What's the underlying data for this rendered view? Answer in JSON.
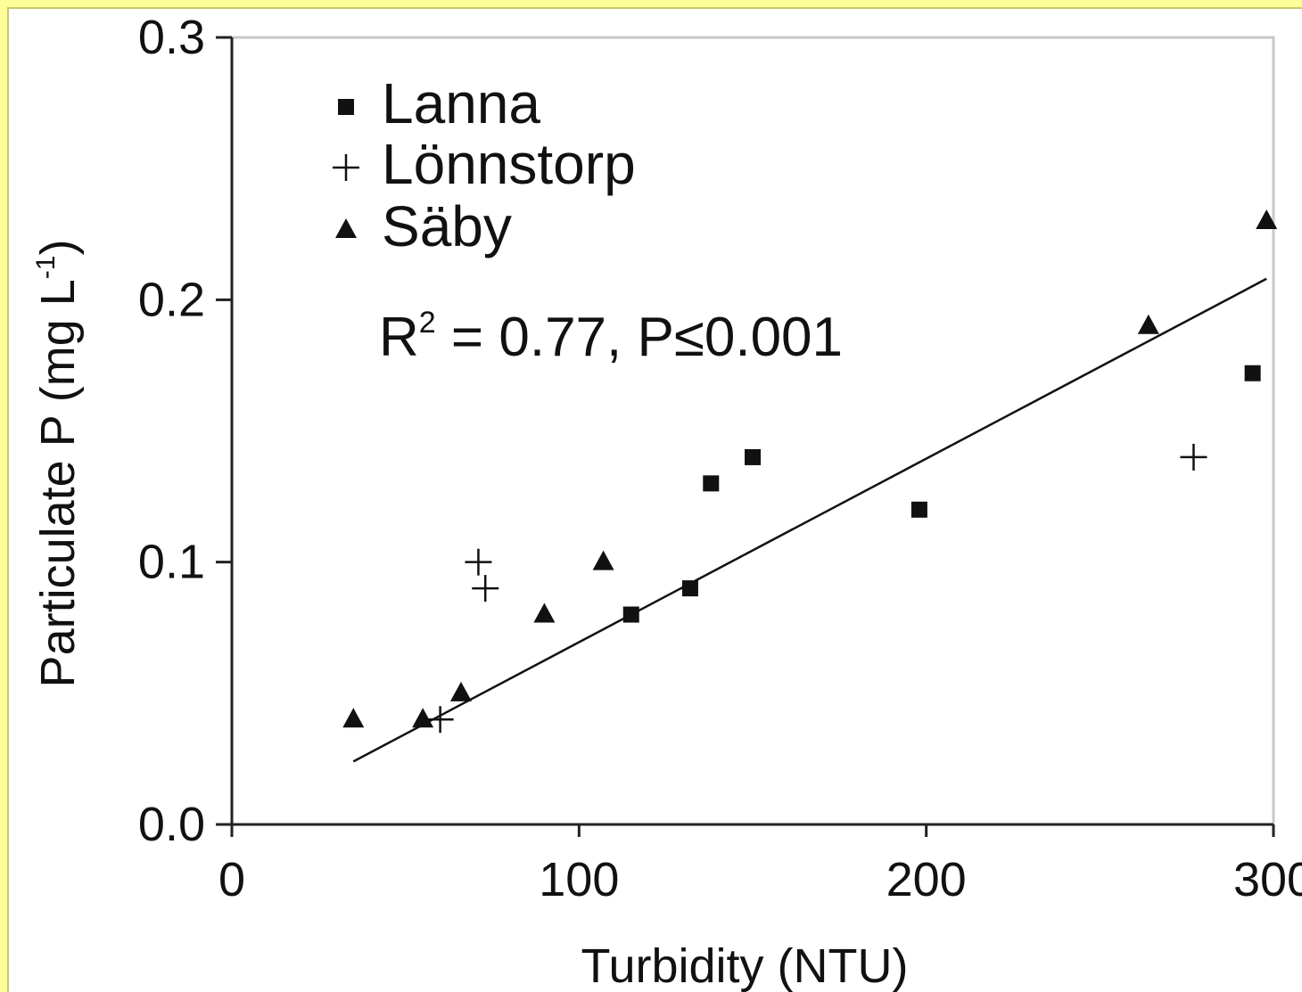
{
  "chart_data": {
    "type": "scatter",
    "title": "",
    "xlabel": "Turbidity (NTU)",
    "ylabel_main": "Particulate P (mg L",
    "ylabel_sup": "-1",
    "ylabel_close": ")",
    "xlim": [
      0,
      300
    ],
    "ylim": [
      0,
      0.3
    ],
    "x_ticks": [
      {
        "value": 0,
        "label": "0"
      },
      {
        "value": 100,
        "label": "100"
      },
      {
        "value": 200,
        "label": "200"
      },
      {
        "value": 300,
        "label": "300"
      }
    ],
    "y_ticks": [
      {
        "value": 0,
        "label": "0.0"
      },
      {
        "value": 0.1,
        "label": "0.1"
      },
      {
        "value": 0.2,
        "label": "0.2"
      },
      {
        "value": 0.3,
        "label": "0.3"
      }
    ],
    "grid": false,
    "legend_position": "top-left",
    "series": [
      {
        "name": "Lanna",
        "marker": "square",
        "points": [
          {
            "x": 115,
            "y": 0.08
          },
          {
            "x": 132,
            "y": 0.09
          },
          {
            "x": 138,
            "y": 0.13
          },
          {
            "x": 150,
            "y": 0.14
          },
          {
            "x": 198,
            "y": 0.12
          },
          {
            "x": 294,
            "y": 0.172
          }
        ]
      },
      {
        "name": "Lönnstorp",
        "marker": "plus",
        "points": [
          {
            "x": 60,
            "y": 0.04
          },
          {
            "x": 71,
            "y": 0.1
          },
          {
            "x": 73,
            "y": 0.09
          },
          {
            "x": 277,
            "y": 0.14
          }
        ]
      },
      {
        "name": "Säby",
        "marker": "triangle",
        "points": [
          {
            "x": 35,
            "y": 0.04
          },
          {
            "x": 55,
            "y": 0.04
          },
          {
            "x": 66,
            "y": 0.05
          },
          {
            "x": 90,
            "y": 0.08
          },
          {
            "x": 107,
            "y": 0.1
          },
          {
            "x": 264,
            "y": 0.19
          },
          {
            "x": 298,
            "y": 0.23
          }
        ]
      }
    ],
    "fit_line": {
      "x": [
        35,
        298
      ],
      "y": [
        0.024,
        0.208
      ]
    },
    "annotation": {
      "prefix": "R",
      "sup": "2",
      "rest": " = 0.77, P≤0.001"
    }
  }
}
